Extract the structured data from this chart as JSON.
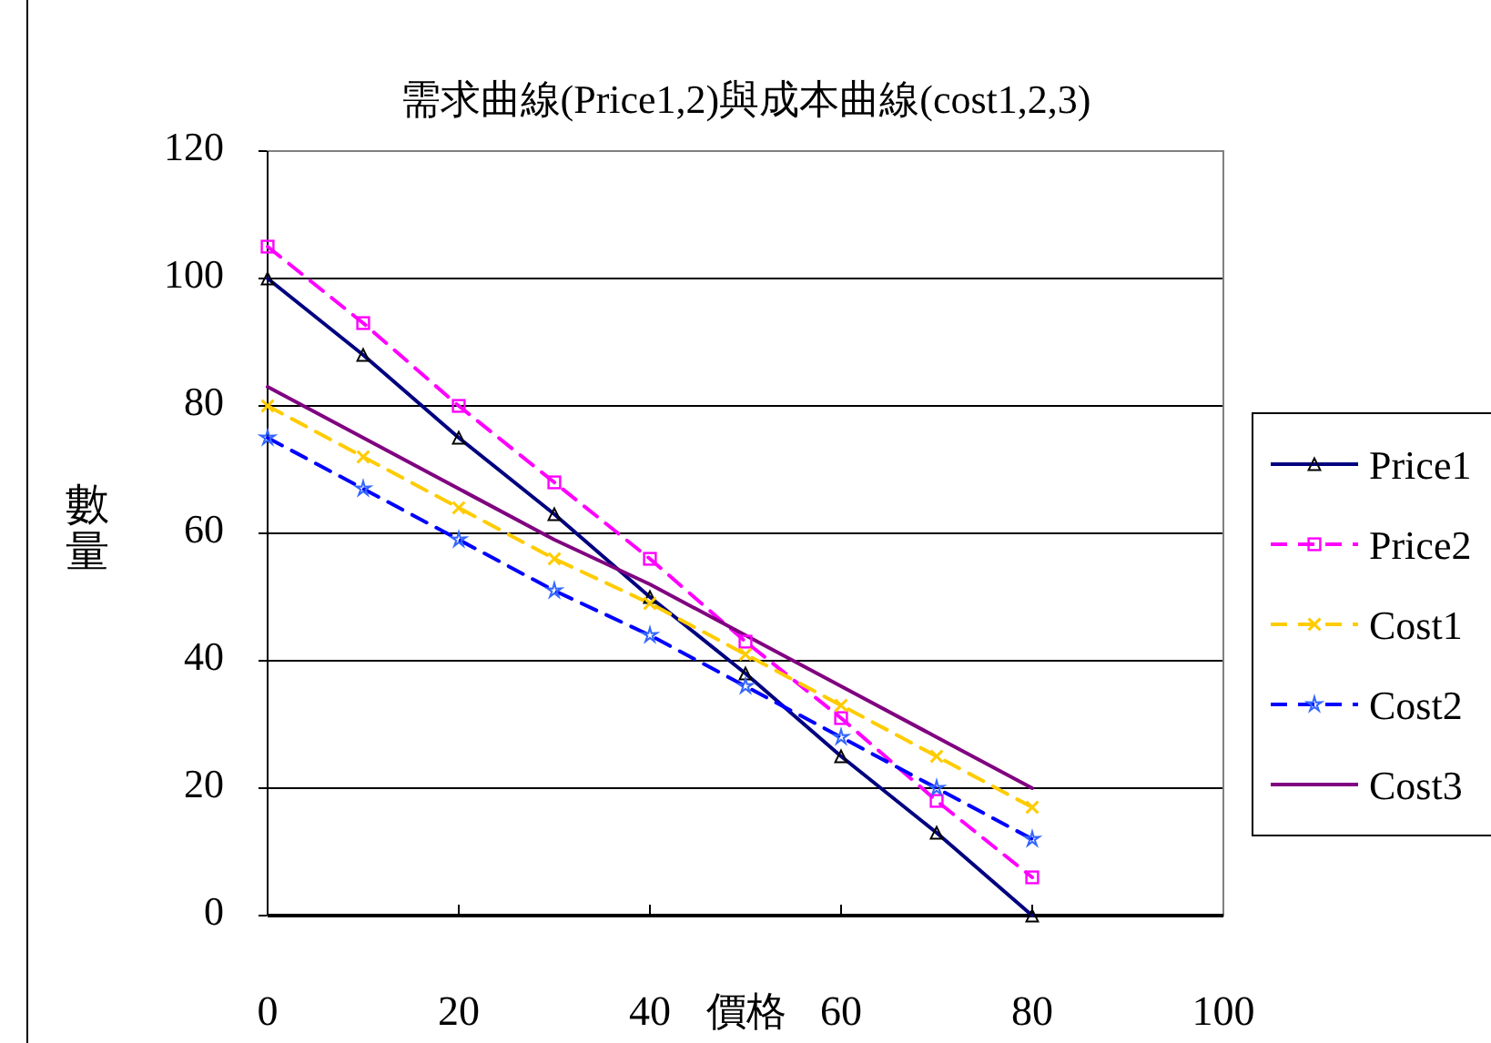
{
  "chart_data": {
    "type": "line",
    "title": "需求曲線(Price1,2)與成本曲線(cost1,2,3)",
    "xlabel": "價格",
    "ylabel": "數量",
    "x": [
      0,
      10,
      20,
      30,
      40,
      50,
      60,
      70,
      80
    ],
    "xlim": [
      0,
      100
    ],
    "xticks": [
      0,
      20,
      40,
      60,
      80,
      100
    ],
    "ylim": [
      0,
      120
    ],
    "yticks": [
      0,
      20,
      40,
      60,
      80,
      100,
      120
    ],
    "grid": "y",
    "legend": "right",
    "series": [
      {
        "name": "Price1",
        "color": "#000080",
        "marker": "triangle",
        "line_style": "solid",
        "values": [
          100,
          88,
          75,
          63,
          50,
          38,
          25,
          13,
          0
        ]
      },
      {
        "name": "Price2",
        "color": "#ff00ff",
        "marker": "square",
        "line_style": "dashed",
        "values": [
          105,
          93,
          80,
          68,
          56,
          43,
          31,
          18,
          6
        ]
      },
      {
        "name": "Cost1",
        "color": "#ffcc00",
        "marker": "cross",
        "line_style": "dashed",
        "values": [
          80,
          72,
          64,
          56,
          49,
          41,
          33,
          25,
          17
        ]
      },
      {
        "name": "Cost2",
        "color": "#0000ff",
        "marker": "star",
        "line_style": "dashed",
        "values": [
          75,
          67,
          59,
          51,
          44,
          36,
          28,
          20,
          12
        ]
      },
      {
        "name": "Cost3",
        "color": "#800080",
        "marker": "none",
        "line_style": "solid",
        "values": [
          83,
          75,
          67,
          59,
          52,
          44,
          36,
          28,
          20
        ]
      }
    ]
  }
}
